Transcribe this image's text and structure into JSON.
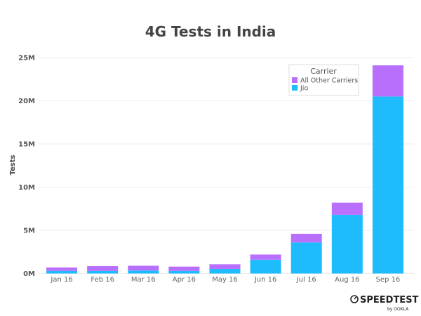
{
  "chart_data": {
    "type": "bar",
    "stacked": true,
    "title": "4G Tests in India",
    "xlabel": "",
    "ylabel": "Tests",
    "ylim": [
      0,
      25000000
    ],
    "yticks": [
      0,
      5000000,
      10000000,
      15000000,
      20000000,
      25000000
    ],
    "ytick_labels": [
      "0M",
      "5M",
      "10M",
      "15M",
      "20M",
      "25M"
    ],
    "categories": [
      "Jan 16",
      "Feb 16",
      "Mar 16",
      "Apr 16",
      "May 16",
      "Jun 16",
      "Jul 16",
      "Aug 16",
      "Sep 16"
    ],
    "series": [
      {
        "name": "Jio",
        "color": "#1ebcfc",
        "values": [
          300000,
          300000,
          350000,
          300000,
          530000,
          1600000,
          3600000,
          6800000,
          20500000
        ]
      },
      {
        "name": "All Other Carriers",
        "color": "#b86ffc",
        "values": [
          400000,
          550000,
          550000,
          500000,
          540000,
          600000,
          1000000,
          1400000,
          3600000
        ]
      }
    ],
    "legend": {
      "title": "Carrier",
      "position": "top-right",
      "order": [
        "All Other Carriers",
        "Jio"
      ]
    },
    "grid": true
  },
  "logo": {
    "name": "SPEEDTEST",
    "sub": "by OOKLA"
  }
}
